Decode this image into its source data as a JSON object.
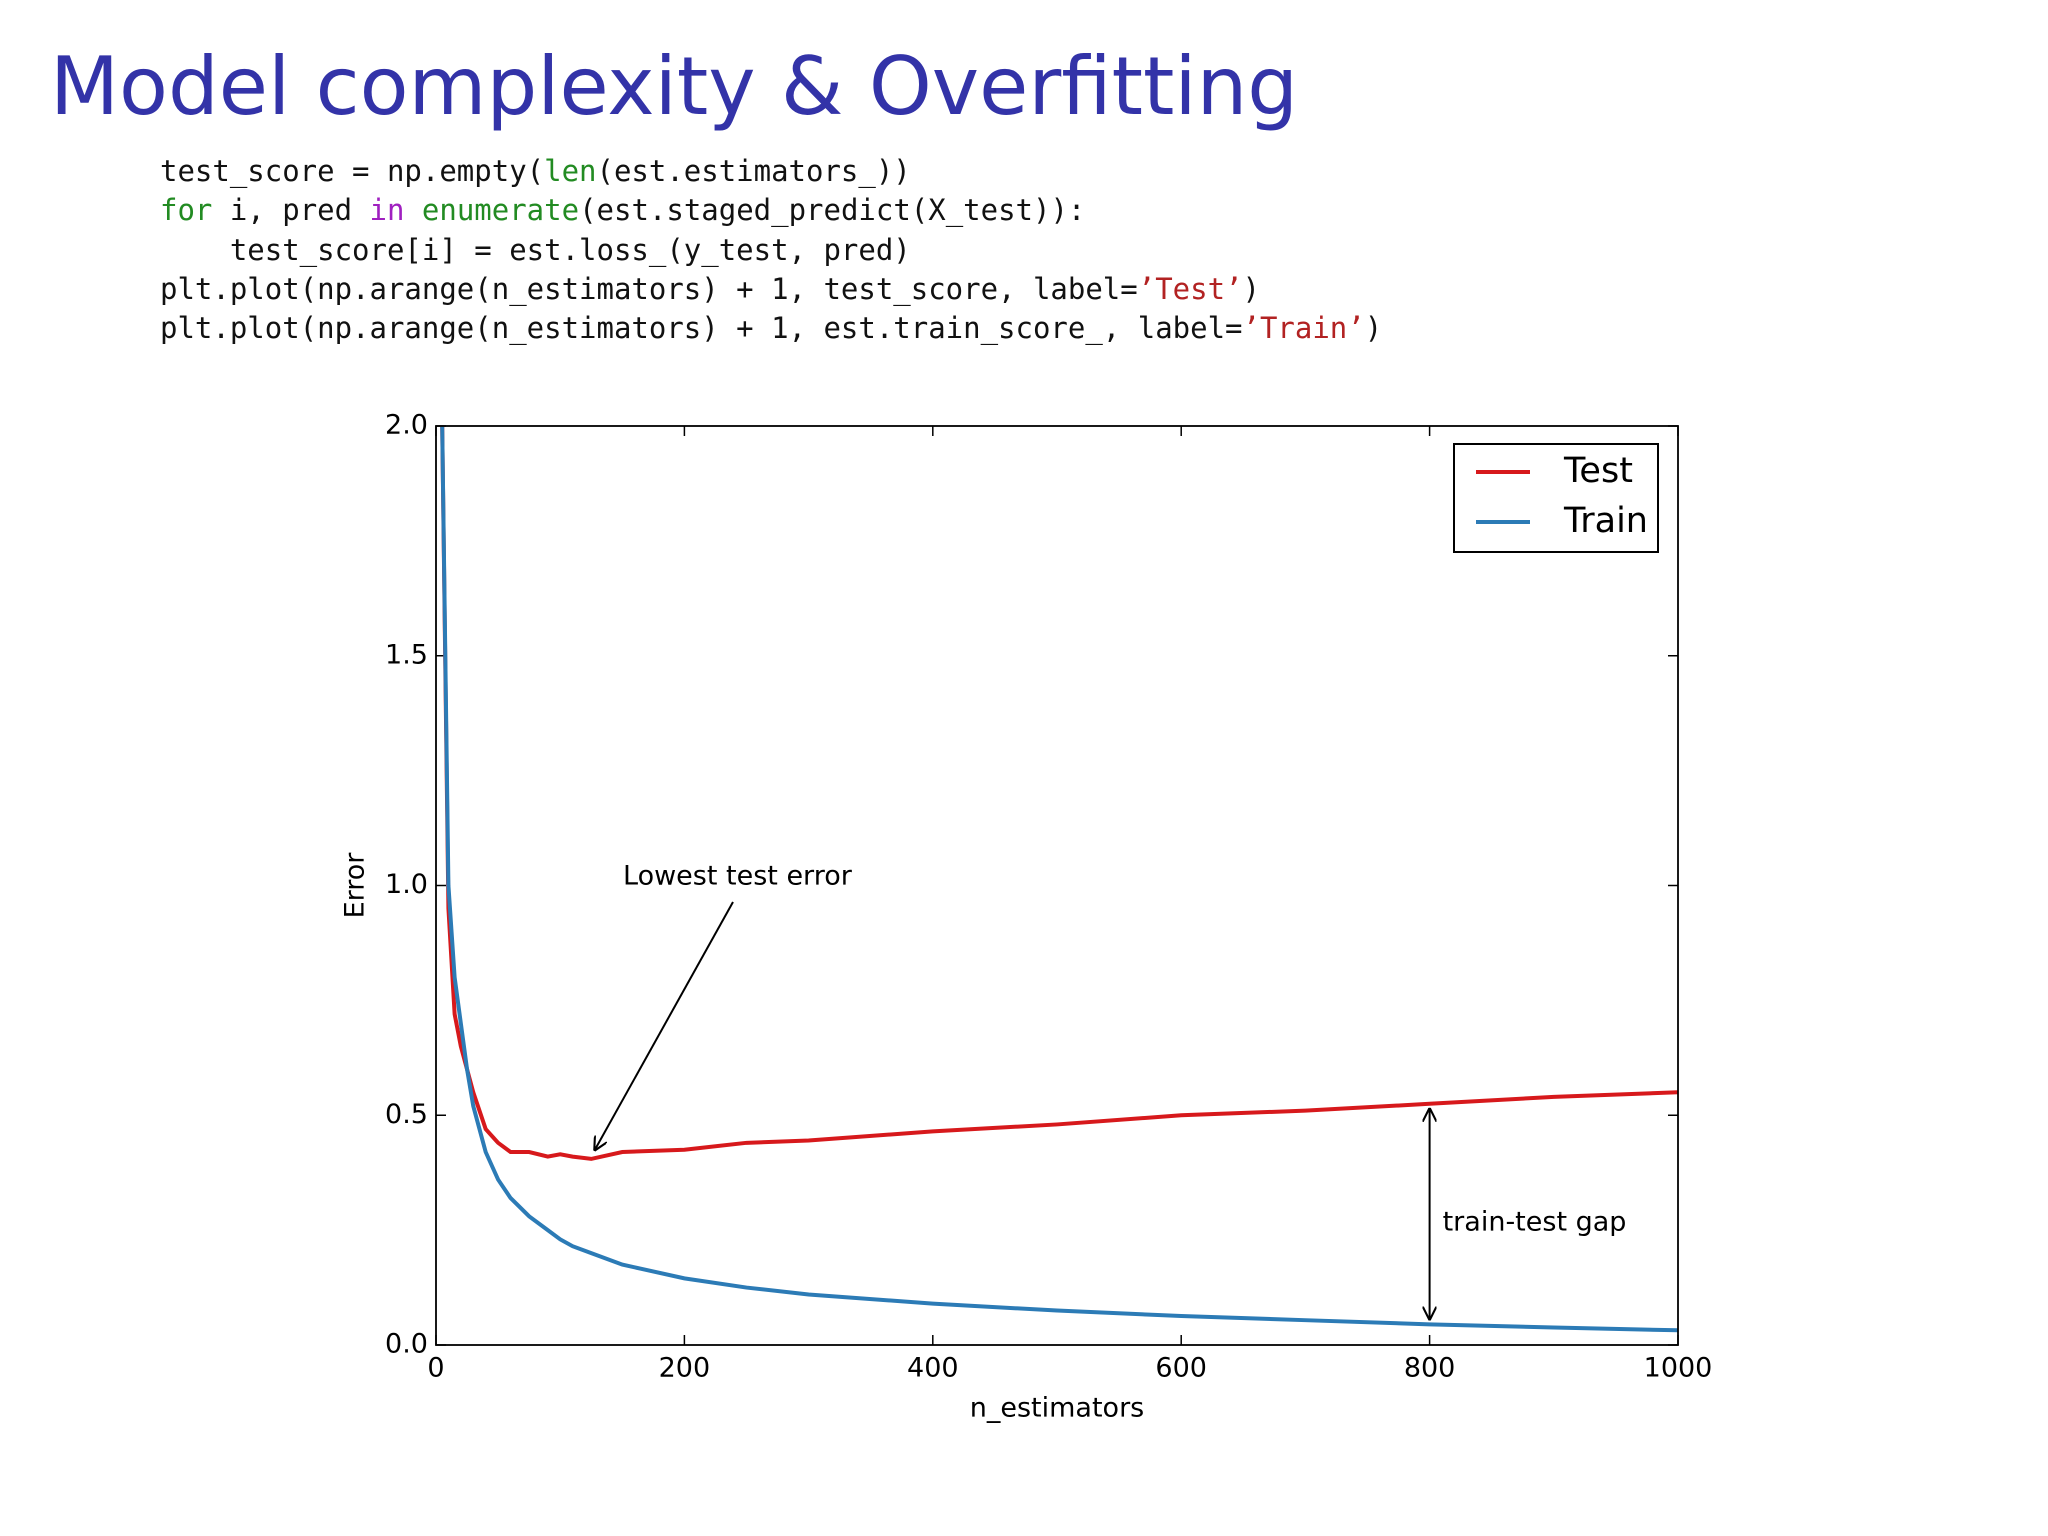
{
  "slide": {
    "title": "Model complexity & Overfitting",
    "code": [
      [
        {
          "text": "test_score = np.empty("
        },
        {
          "text": "len",
          "color": "#228b22"
        },
        {
          "text": "(est.estimators_))"
        }
      ],
      [
        {
          "text": "for",
          "color": "#228b22"
        },
        {
          "text": " i, pred "
        },
        {
          "text": "in",
          "color": "#a020c0"
        },
        {
          "text": " "
        },
        {
          "text": "enumerate",
          "color": "#228b22"
        },
        {
          "text": "(est.staged_predict(X_test)):"
        }
      ],
      [
        {
          "text": "    test_score[i] = est.loss_(y_test, pred)"
        }
      ],
      [
        {
          "text": "plt.plot(np.arange(n_estimators) + 1, test_score, label="
        },
        {
          "text": "’Test’",
          "color": "#b22222"
        },
        {
          "text": ")"
        }
      ],
      [
        {
          "text": "plt.plot(np.arange(n_estimators) + 1, est.train_score_, label="
        },
        {
          "text": "’Train’",
          "color": "#b22222"
        },
        {
          "text": ")"
        }
      ]
    ]
  },
  "chart_data": {
    "type": "line",
    "xlabel": "n_estimators",
    "ylabel": "Error",
    "x": [
      5,
      10,
      15,
      20,
      25,
      30,
      40,
      50,
      60,
      75,
      90,
      100,
      110,
      125,
      150,
      200,
      250,
      300,
      400,
      500,
      600,
      700,
      800,
      900,
      1000
    ],
    "series": [
      {
        "name": "Test",
        "color": "#d7191c",
        "values": [
          2.0,
          0.95,
          0.72,
          0.65,
          0.6,
          0.55,
          0.47,
          0.44,
          0.42,
          0.42,
          0.41,
          0.415,
          0.41,
          0.405,
          0.42,
          0.425,
          0.44,
          0.445,
          0.465,
          0.48,
          0.5,
          0.51,
          0.525,
          0.54,
          0.55
        ]
      },
      {
        "name": "Train",
        "color": "#2c7bb6",
        "values": [
          2.0,
          1.0,
          0.8,
          0.7,
          0.6,
          0.52,
          0.42,
          0.36,
          0.32,
          0.28,
          0.25,
          0.23,
          0.215,
          0.2,
          0.175,
          0.145,
          0.125,
          0.11,
          0.09,
          0.075,
          0.063,
          0.054,
          0.045,
          0.038,
          0.032
        ]
      }
    ],
    "xlim": [
      0,
      1000
    ],
    "xticks": [
      0,
      200,
      400,
      600,
      800,
      1000
    ],
    "ylim": [
      0,
      2.0
    ],
    "yticks": [
      {
        "value": 0,
        "label": "0.0"
      },
      0.5,
      {
        "value": 1,
        "label": "1.0"
      },
      1.5,
      {
        "value": 2,
        "label": "2.0"
      }
    ],
    "legend": "upper right",
    "annotations": [
      "Lowest test error",
      "train-test gap"
    ]
  }
}
